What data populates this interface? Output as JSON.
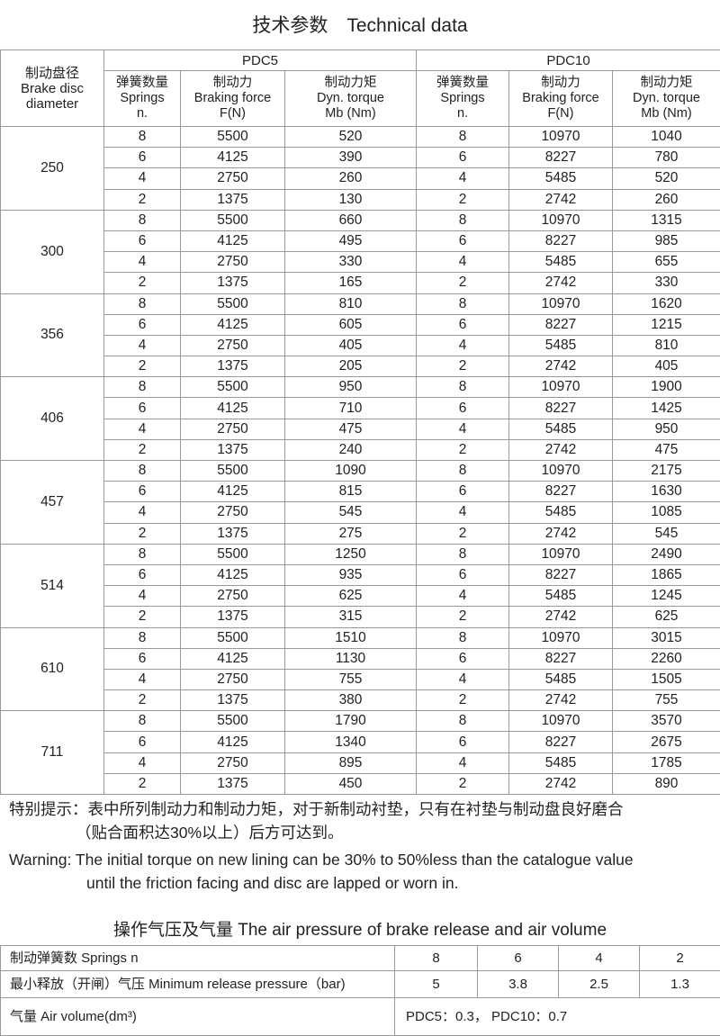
{
  "title": "技术参数　Technical data",
  "table": {
    "header_diameter": [
      "制动盘径",
      "Brake disc",
      "diameter"
    ],
    "models": [
      "PDC5",
      "PDC10"
    ],
    "subheaders": [
      [
        "弹簧数量",
        "Springs",
        "n."
      ],
      [
        "制动力",
        "Braking force",
        "F(N)"
      ],
      [
        "制动力矩",
        "Dyn. torque",
        "Mb (Nm)"
      ]
    ],
    "groups": [
      {
        "diameter": "250",
        "rows": [
          [
            "8",
            "5500",
            "520",
            "8",
            "10970",
            "1040"
          ],
          [
            "6",
            "4125",
            "390",
            "6",
            "8227",
            "780"
          ],
          [
            "4",
            "2750",
            "260",
            "4",
            "5485",
            "520"
          ],
          [
            "2",
            "1375",
            "130",
            "2",
            "2742",
            "260"
          ]
        ]
      },
      {
        "diameter": "300",
        "rows": [
          [
            "8",
            "5500",
            "660",
            "8",
            "10970",
            "1315"
          ],
          [
            "6",
            "4125",
            "495",
            "6",
            "8227",
            "985"
          ],
          [
            "4",
            "2750",
            "330",
            "4",
            "5485",
            "655"
          ],
          [
            "2",
            "1375",
            "165",
            "2",
            "2742",
            "330"
          ]
        ]
      },
      {
        "diameter": "356",
        "rows": [
          [
            "8",
            "5500",
            "810",
            "8",
            "10970",
            "1620"
          ],
          [
            "6",
            "4125",
            "605",
            "6",
            "8227",
            "1215"
          ],
          [
            "4",
            "2750",
            "405",
            "4",
            "5485",
            "810"
          ],
          [
            "2",
            "1375",
            "205",
            "2",
            "2742",
            "405"
          ]
        ]
      },
      {
        "diameter": "406",
        "rows": [
          [
            "8",
            "5500",
            "950",
            "8",
            "10970",
            "1900"
          ],
          [
            "6",
            "4125",
            "710",
            "6",
            "8227",
            "1425"
          ],
          [
            "4",
            "2750",
            "475",
            "4",
            "5485",
            "950"
          ],
          [
            "2",
            "1375",
            "240",
            "2",
            "2742",
            "475"
          ]
        ]
      },
      {
        "diameter": "457",
        "rows": [
          [
            "8",
            "5500",
            "1090",
            "8",
            "10970",
            "2175"
          ],
          [
            "6",
            "4125",
            "815",
            "6",
            "8227",
            "1630"
          ],
          [
            "4",
            "2750",
            "545",
            "4",
            "5485",
            "1085"
          ],
          [
            "2",
            "1375",
            "275",
            "2",
            "2742",
            "545"
          ]
        ]
      },
      {
        "diameter": "514",
        "rows": [
          [
            "8",
            "5500",
            "1250",
            "8",
            "10970",
            "2490"
          ],
          [
            "6",
            "4125",
            "935",
            "6",
            "8227",
            "1865"
          ],
          [
            "4",
            "2750",
            "625",
            "4",
            "5485",
            "1245"
          ],
          [
            "2",
            "1375",
            "315",
            "2",
            "2742",
            "625"
          ]
        ]
      },
      {
        "diameter": "610",
        "rows": [
          [
            "8",
            "5500",
            "1510",
            "8",
            "10970",
            "3015"
          ],
          [
            "6",
            "4125",
            "1130",
            "6",
            "8227",
            "2260"
          ],
          [
            "4",
            "2750",
            "755",
            "4",
            "5485",
            "1505"
          ],
          [
            "2",
            "1375",
            "380",
            "2",
            "2742",
            "755"
          ]
        ]
      },
      {
        "diameter": "711",
        "rows": [
          [
            "8",
            "5500",
            "1790",
            "8",
            "10970",
            "3570"
          ],
          [
            "6",
            "4125",
            "1340",
            "6",
            "8227",
            "2675"
          ],
          [
            "4",
            "2750",
            "895",
            "4",
            "5485",
            "1785"
          ],
          [
            "2",
            "1375",
            "450",
            "2",
            "2742",
            "890"
          ]
        ]
      }
    ]
  },
  "notes": {
    "cn_line1": "特别提示：表中所列制动力和制动力矩，对于新制动衬垫，只有在衬垫与制动盘良好磨合",
    "cn_line2": "（贴合面积达30%以上）后方可达到。",
    "en_line1": "Warning: The initial torque on new lining can be 30% to 50%less than the catalogue value",
    "en_line2": "until the friction facing and disc are lapped or worn in."
  },
  "air": {
    "title": "操作气压及气量 The air pressure of brake release and air volume",
    "springs_label": "制动弹簧数 Springs  n",
    "springs": [
      "8",
      "6",
      "4",
      "2"
    ],
    "pressure_label": "最小释放（开闸）气压 Minimum release pressure（bar)",
    "pressures": [
      "5",
      "3.8",
      "2.5",
      "1.3"
    ],
    "volume_label": "气量  Air volume(dm³)",
    "volume_value": "PDC5：0.3，   PDC10：0.7"
  }
}
